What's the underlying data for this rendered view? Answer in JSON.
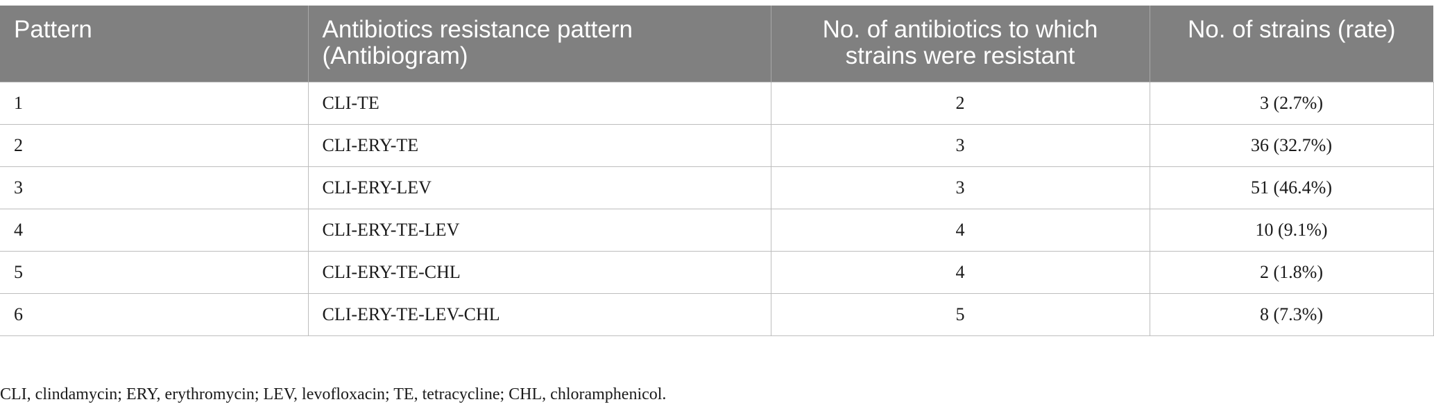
{
  "table": {
    "headers": [
      "Pattern",
      "Antibiotics resistance pattern (Antibiogram)",
      "No. of antibiotics to which strains were resistant",
      "No. of strains (rate)"
    ],
    "rows": [
      {
        "pattern": "1",
        "antibiogram": "CLI-TE",
        "count": "2",
        "strains": "3 (2.7%)"
      },
      {
        "pattern": "2",
        "antibiogram": "CLI-ERY-TE",
        "count": "3",
        "strains": "36 (32.7%)"
      },
      {
        "pattern": "3",
        "antibiogram": "CLI-ERY-LEV",
        "count": "3",
        "strains": "51 (46.4%)"
      },
      {
        "pattern": "4",
        "antibiogram": "CLI-ERY-TE-LEV",
        "count": "4",
        "strains": "10 (9.1%)"
      },
      {
        "pattern": "5",
        "antibiogram": "CLI-ERY-TE-CHL",
        "count": "4",
        "strains": "2 (1.8%)"
      },
      {
        "pattern": "6",
        "antibiogram": "CLI-ERY-TE-LEV-CHL",
        "count": "5",
        "strains": "8 (7.3%)"
      }
    ]
  },
  "footnote": "CLI, clindamycin; ERY, erythromycin; LEV, levofloxacin; TE, tetracycline; CHL, chloramphenicol.",
  "colors": {
    "header_background": "#808080",
    "header_text": "#ffffff",
    "grid_line": "#bdbdbd"
  }
}
